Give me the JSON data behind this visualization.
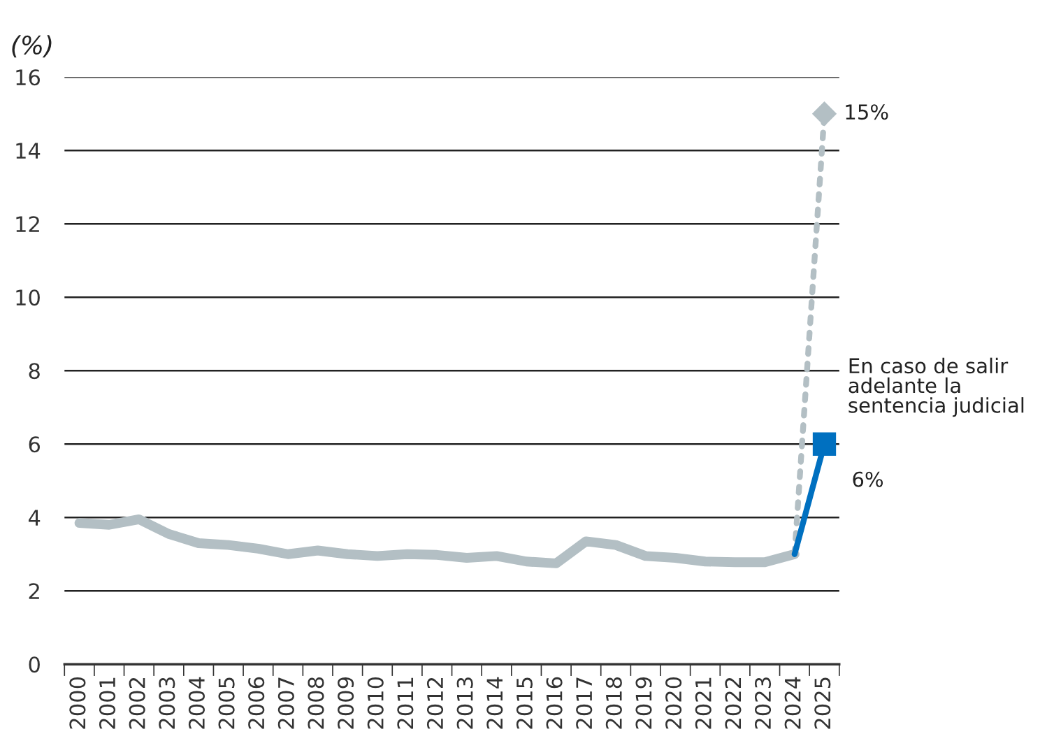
{
  "chart_data": {
    "type": "line",
    "ylabel": "(%)",
    "categories": [
      "2000",
      "2001",
      "2002",
      "2003",
      "2004",
      "2005",
      "2006",
      "2007",
      "2008",
      "2009",
      "2010",
      "2011",
      "2012",
      "2013",
      "2014",
      "2015",
      "2016",
      "2017",
      "2018",
      "2019",
      "2020",
      "2021",
      "2022",
      "2023",
      "2024",
      "2025"
    ],
    "series": [
      {
        "color": "#b3bfc4",
        "line_style": "solid",
        "marker": "none",
        "values": [
          3.85,
          3.8,
          3.95,
          3.55,
          3.3,
          3.25,
          3.15,
          3.0,
          3.1,
          3.0,
          2.95,
          3.0,
          2.98,
          2.9,
          2.95,
          2.8,
          2.75,
          3.35,
          3.25,
          2.95,
          2.9,
          2.8,
          2.78,
          2.78,
          3.0,
          null
        ]
      },
      {
        "color": "#b3bfc4",
        "line_style": "dotted",
        "marker": "diamond",
        "values": [
          null,
          null,
          null,
          null,
          null,
          null,
          null,
          null,
          null,
          null,
          null,
          null,
          null,
          null,
          null,
          null,
          null,
          null,
          null,
          null,
          null,
          null,
          null,
          null,
          3.0,
          15
        ]
      },
      {
        "color": "#0070c0",
        "line_style": "solid",
        "marker": "square",
        "values": [
          null,
          null,
          null,
          null,
          null,
          null,
          null,
          null,
          null,
          null,
          null,
          null,
          null,
          null,
          null,
          null,
          null,
          null,
          null,
          null,
          null,
          null,
          null,
          null,
          3.0,
          6
        ]
      }
    ],
    "ylim": [
      0,
      16
    ],
    "yticks": [
      0,
      2,
      4,
      6,
      8,
      10,
      12,
      14,
      16
    ],
    "grid": "y",
    "legend": false,
    "annotations": [
      {
        "text": "15%",
        "x": "2025",
        "y": 15
      },
      {
        "text": "En caso de salir\nadelante la\nsentencia judicial",
        "x": "2025",
        "y": 6
      },
      {
        "text": "6%",
        "x": "2025",
        "y": 6
      }
    ]
  }
}
